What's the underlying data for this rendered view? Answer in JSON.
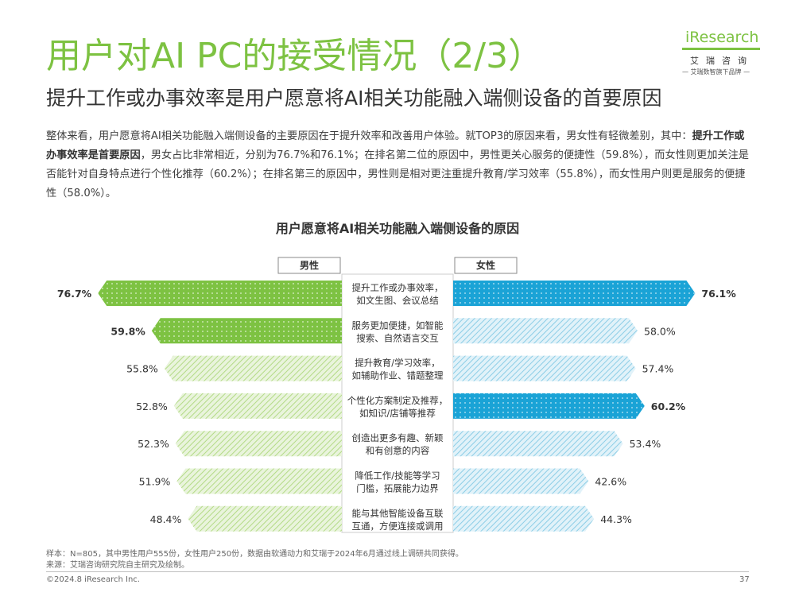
{
  "header": {
    "title": "用户对AI PC的接受情况（2/3）",
    "subtitle": "提升工作或办事效率是用户愿意将AI相关功能融入端侧设备的首要原因"
  },
  "logo": {
    "brand": "iResearch",
    "cn": "艾瑞咨询",
    "slogan": "— 艾瑞数智旗下品牌 —"
  },
  "body": {
    "p1": "整体来看，用户愿意将AI相关功能融入端侧设备的主要原因在于提升效率和改善用户体验。就TOP3的原因来看，男女性有轻微差别，其中：",
    "bold": "提升工作或办事效率是首要原因",
    "p2": "，男女占比非常相近，分别为76.7%和76.1%；在排名第二位的原因中，男性更关心服务的便捷性（59.8%），而女性则更加关注是否能针对自身特点进行个性化推荐（60.2%）；在排名第三的原因中，男性则是相对更注重提升教育/学习效率（55.8%），而女性用户则更是服务的便捷性（58.0%）。"
  },
  "chart_data": {
    "type": "bar",
    "title": "用户愿意将AI相关功能融入端侧设备的原因",
    "orientation": "horizontal-butterfly",
    "unit": "%",
    "categories": [
      [
        "提升工作或办事效率，",
        "如文生图、会议总结"
      ],
      [
        "服务更加便捷，如智能",
        "搜索、自然语言交互"
      ],
      [
        "提升教育/学习效率，",
        "如辅助作业、错题整理"
      ],
      [
        "个性化方案制定及推荐，",
        "如知识/店铺等推荐"
      ],
      [
        "创造出更多有趣、新颖",
        "和有创意的内容"
      ],
      [
        "降低工作/技能等学习",
        "门槛，拓展能力边界"
      ],
      [
        "能与其他智能设备互联",
        "互通，方便连接或调用"
      ]
    ],
    "series": [
      {
        "name": "男性",
        "values": [
          76.7,
          59.8,
          55.8,
          52.8,
          52.3,
          51.9,
          48.4
        ],
        "highlight": [
          true,
          true,
          false,
          false,
          false,
          false,
          false
        ],
        "color": "#7dc242",
        "light_color": "#c3e39f"
      },
      {
        "name": "女性",
        "values": [
          76.1,
          58.0,
          57.4,
          60.2,
          53.4,
          42.6,
          44.3
        ],
        "highlight": [
          true,
          false,
          false,
          true,
          false,
          false,
          false
        ],
        "color": "#1aa3d6",
        "light_color": "#9fd6ea"
      }
    ],
    "xlim": [
      0,
      80
    ]
  },
  "footer": {
    "note1": "样本：N=805，其中男性用户555份，女性用户250份，数据由软通动力和艾瑞于2024年6月通过线上调研共同获得。",
    "note2": "来源：艾瑞咨询研究院自主研究及绘制。",
    "copyright": "©2024.8 iResearch Inc.",
    "page": "37"
  }
}
